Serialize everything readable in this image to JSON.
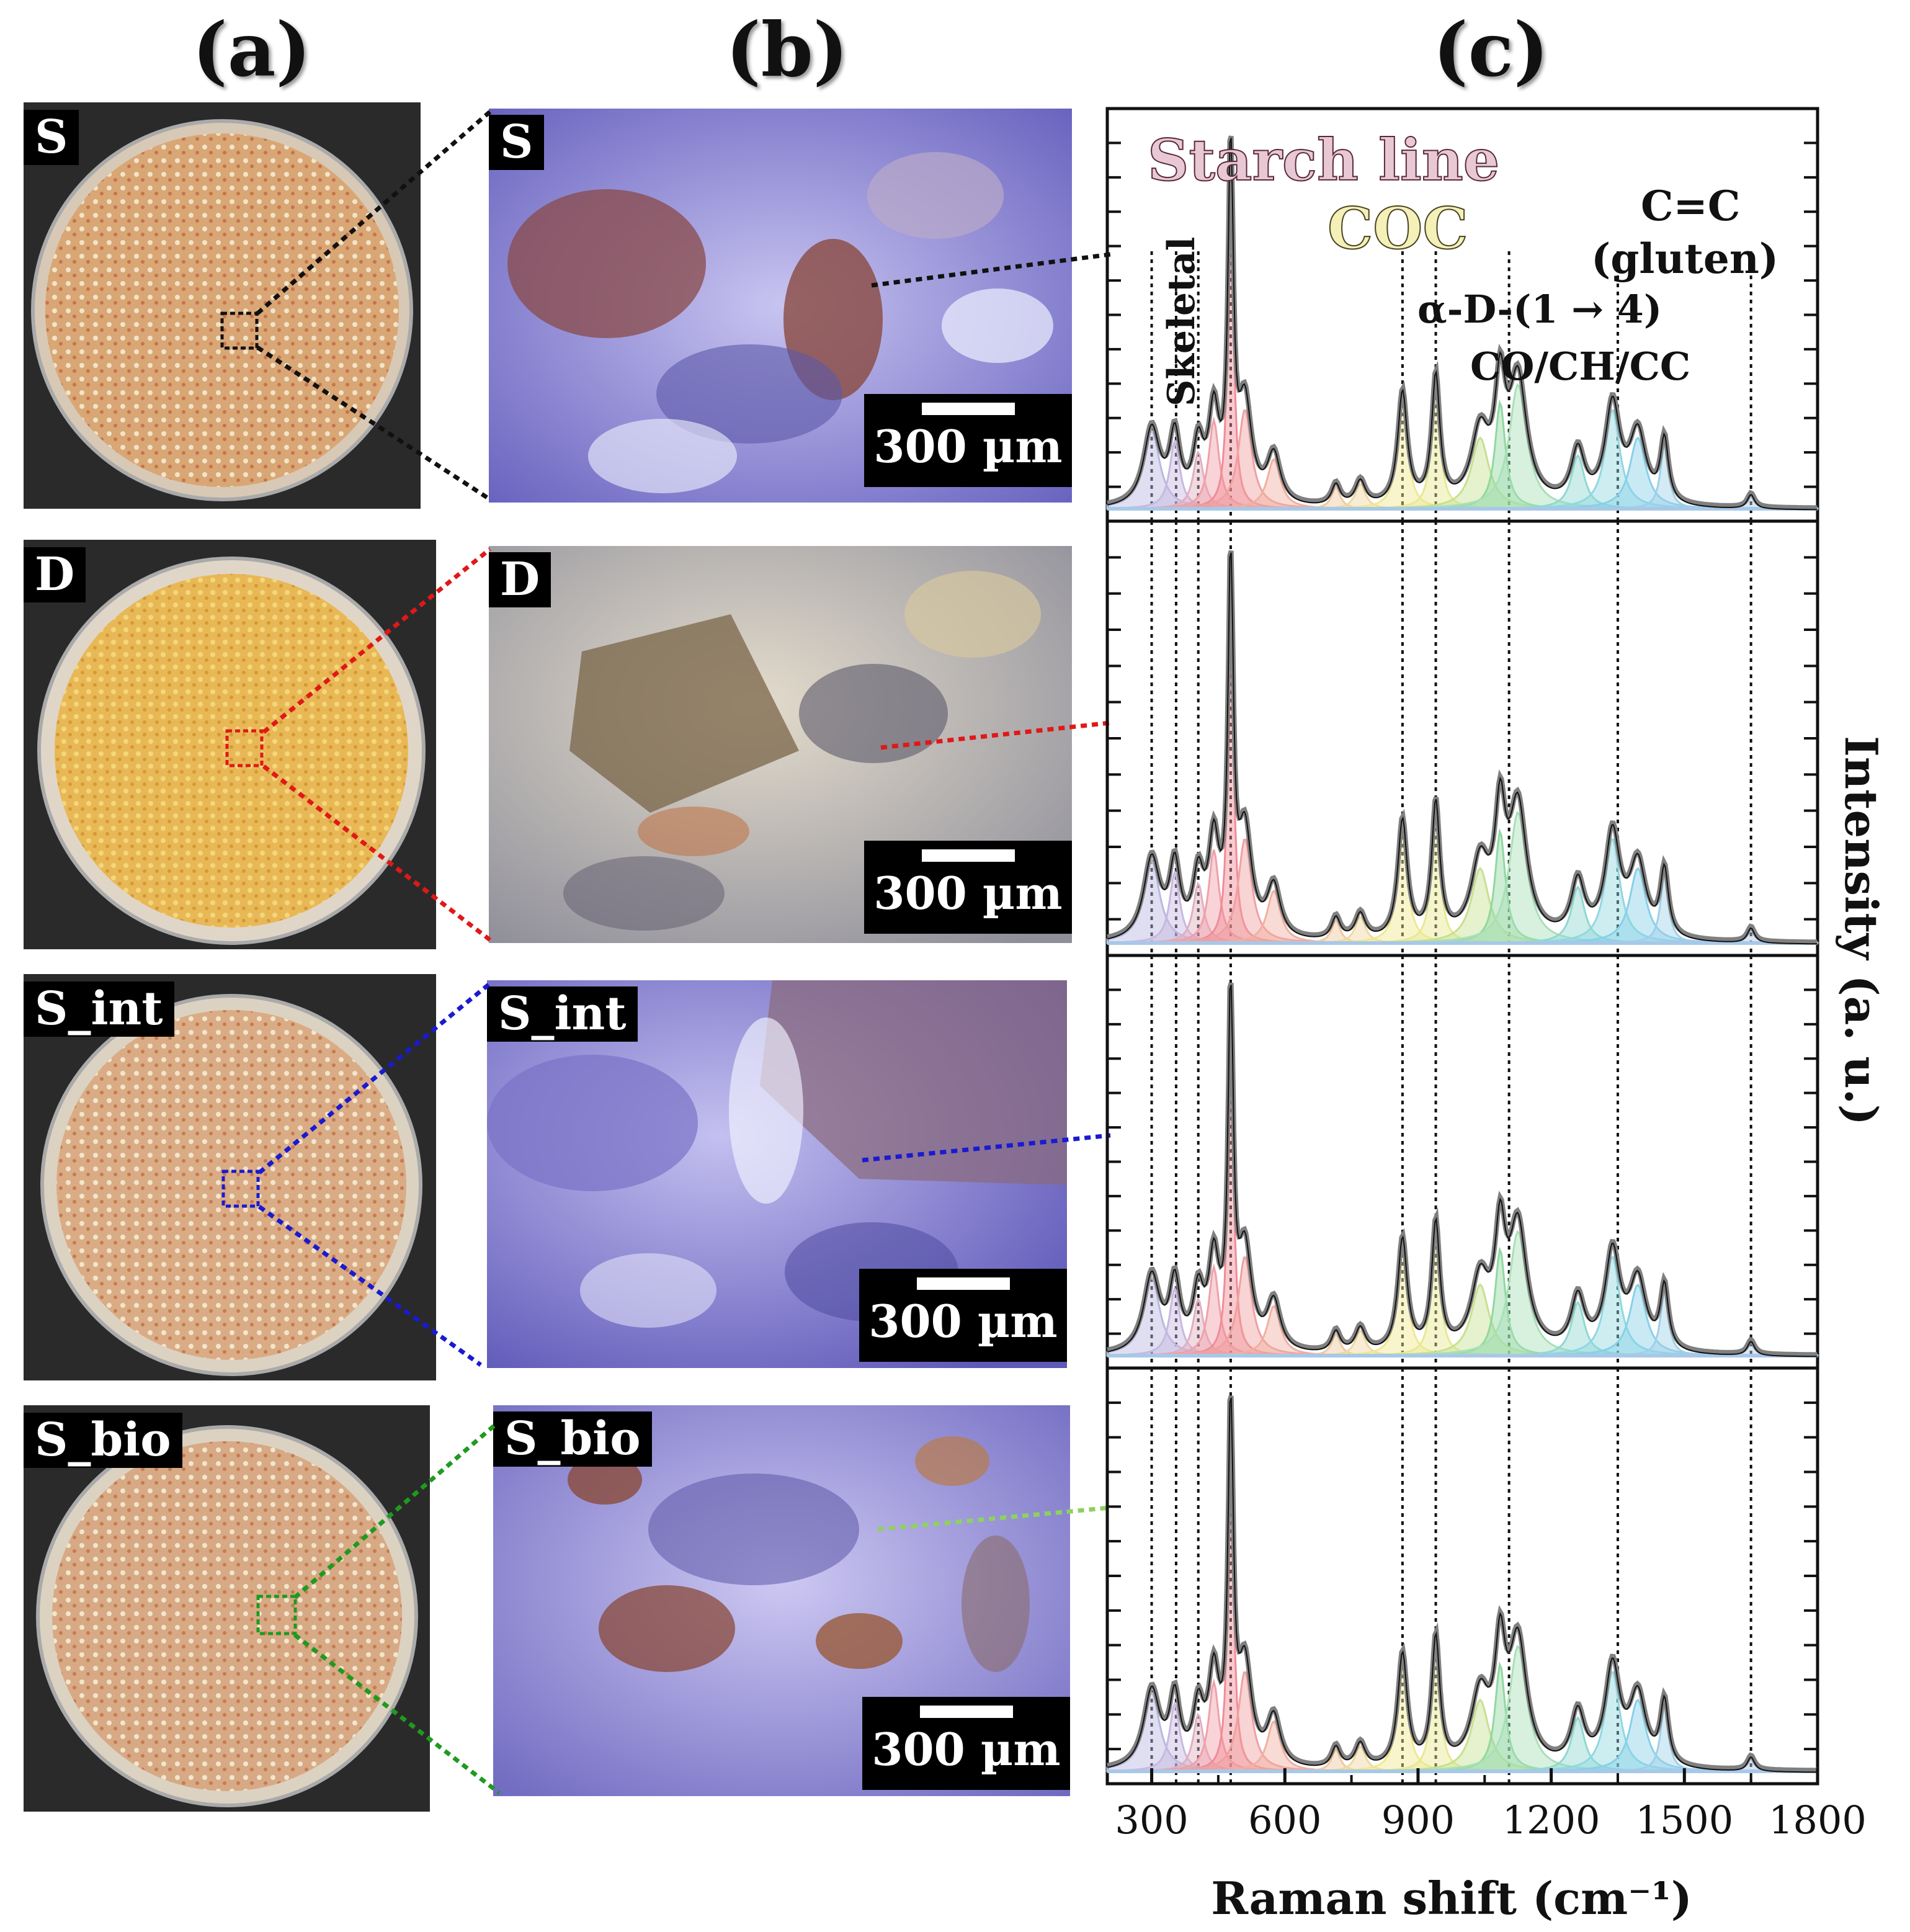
{
  "panel_labels": [
    "(a)",
    "(b)",
    "(c)"
  ],
  "samples": [
    {
      "name": "S",
      "line_color": "#111111",
      "plate_color": "#d9a06a",
      "micro_color": "#8e88d8"
    },
    {
      "name": "D",
      "line_color": "#e01818",
      "plate_color": "#e9b54a",
      "micro_color": "#b7a98c"
    },
    {
      "name": "S_int",
      "line_color": "#1a1ad0",
      "plate_color": "#d9a67a",
      "micro_color": "#8580d6"
    },
    {
      "name": "S_bio",
      "line_color": "#1f9a1f",
      "plate_color": "#d6a27a",
      "micro_color": "#9a90d8"
    }
  ],
  "scale_bar_label": "300 µm",
  "chart_data": {
    "type": "line",
    "xlabel": "Raman shift (cm⁻¹)",
    "ylabel": "Intensity (a. u.)",
    "xlim": [
      200,
      1800
    ],
    "xticks": [
      300,
      600,
      900,
      1200,
      1500,
      1800
    ],
    "annotations": [
      "Starch line",
      "Skeletal",
      "COC",
      "α-D-(1 → 4)",
      "CO/CH/CC",
      "C=C",
      "(gluten)"
    ],
    "reference_lines": [
      300,
      355,
      405,
      478,
      865,
      940,
      1105,
      1350,
      1650
    ],
    "peaks": [
      {
        "x": 300,
        "height": 0.22,
        "width": 22,
        "color": "#b8b8e0"
      },
      {
        "x": 352,
        "height": 0.19,
        "width": 14,
        "color": "#c8b8e0"
      },
      {
        "x": 405,
        "height": 0.16,
        "width": 14,
        "color": "#e0b0c0"
      },
      {
        "x": 440,
        "height": 0.25,
        "width": 14,
        "color": "#f0a0a8"
      },
      {
        "x": 478,
        "height": 1.0,
        "width": 7,
        "color": "#f08c96"
      },
      {
        "x": 510,
        "height": 0.28,
        "width": 18,
        "color": "#f0a0a0"
      },
      {
        "x": 575,
        "height": 0.14,
        "width": 18,
        "color": "#f0b0a0"
      },
      {
        "x": 715,
        "height": 0.06,
        "width": 12,
        "color": "#f0c8a0"
      },
      {
        "x": 770,
        "height": 0.07,
        "width": 14,
        "color": "#f0d8a0"
      },
      {
        "x": 865,
        "height": 0.32,
        "width": 13,
        "color": "#f0e890"
      },
      {
        "x": 940,
        "height": 0.36,
        "width": 11,
        "color": "#e8e890"
      },
      {
        "x": 1040,
        "height": 0.2,
        "width": 24,
        "color": "#c8e090"
      },
      {
        "x": 1085,
        "height": 0.3,
        "width": 14,
        "color": "#90d8a0"
      },
      {
        "x": 1125,
        "height": 0.35,
        "width": 24,
        "color": "#a8e0b8"
      },
      {
        "x": 1260,
        "height": 0.15,
        "width": 18,
        "color": "#90d8d0"
      },
      {
        "x": 1338,
        "height": 0.28,
        "width": 20,
        "color": "#90d8e0"
      },
      {
        "x": 1395,
        "height": 0.2,
        "width": 22,
        "color": "#88d0e8"
      },
      {
        "x": 1455,
        "height": 0.18,
        "width": 11,
        "color": "#a0d0e8"
      },
      {
        "x": 1650,
        "height": 0.04,
        "width": 10,
        "color": "#a8c8e8"
      }
    ],
    "series": [
      {
        "panel": 1
      },
      {
        "panel": 2
      },
      {
        "panel": 3
      },
      {
        "panel": 4
      }
    ]
  }
}
